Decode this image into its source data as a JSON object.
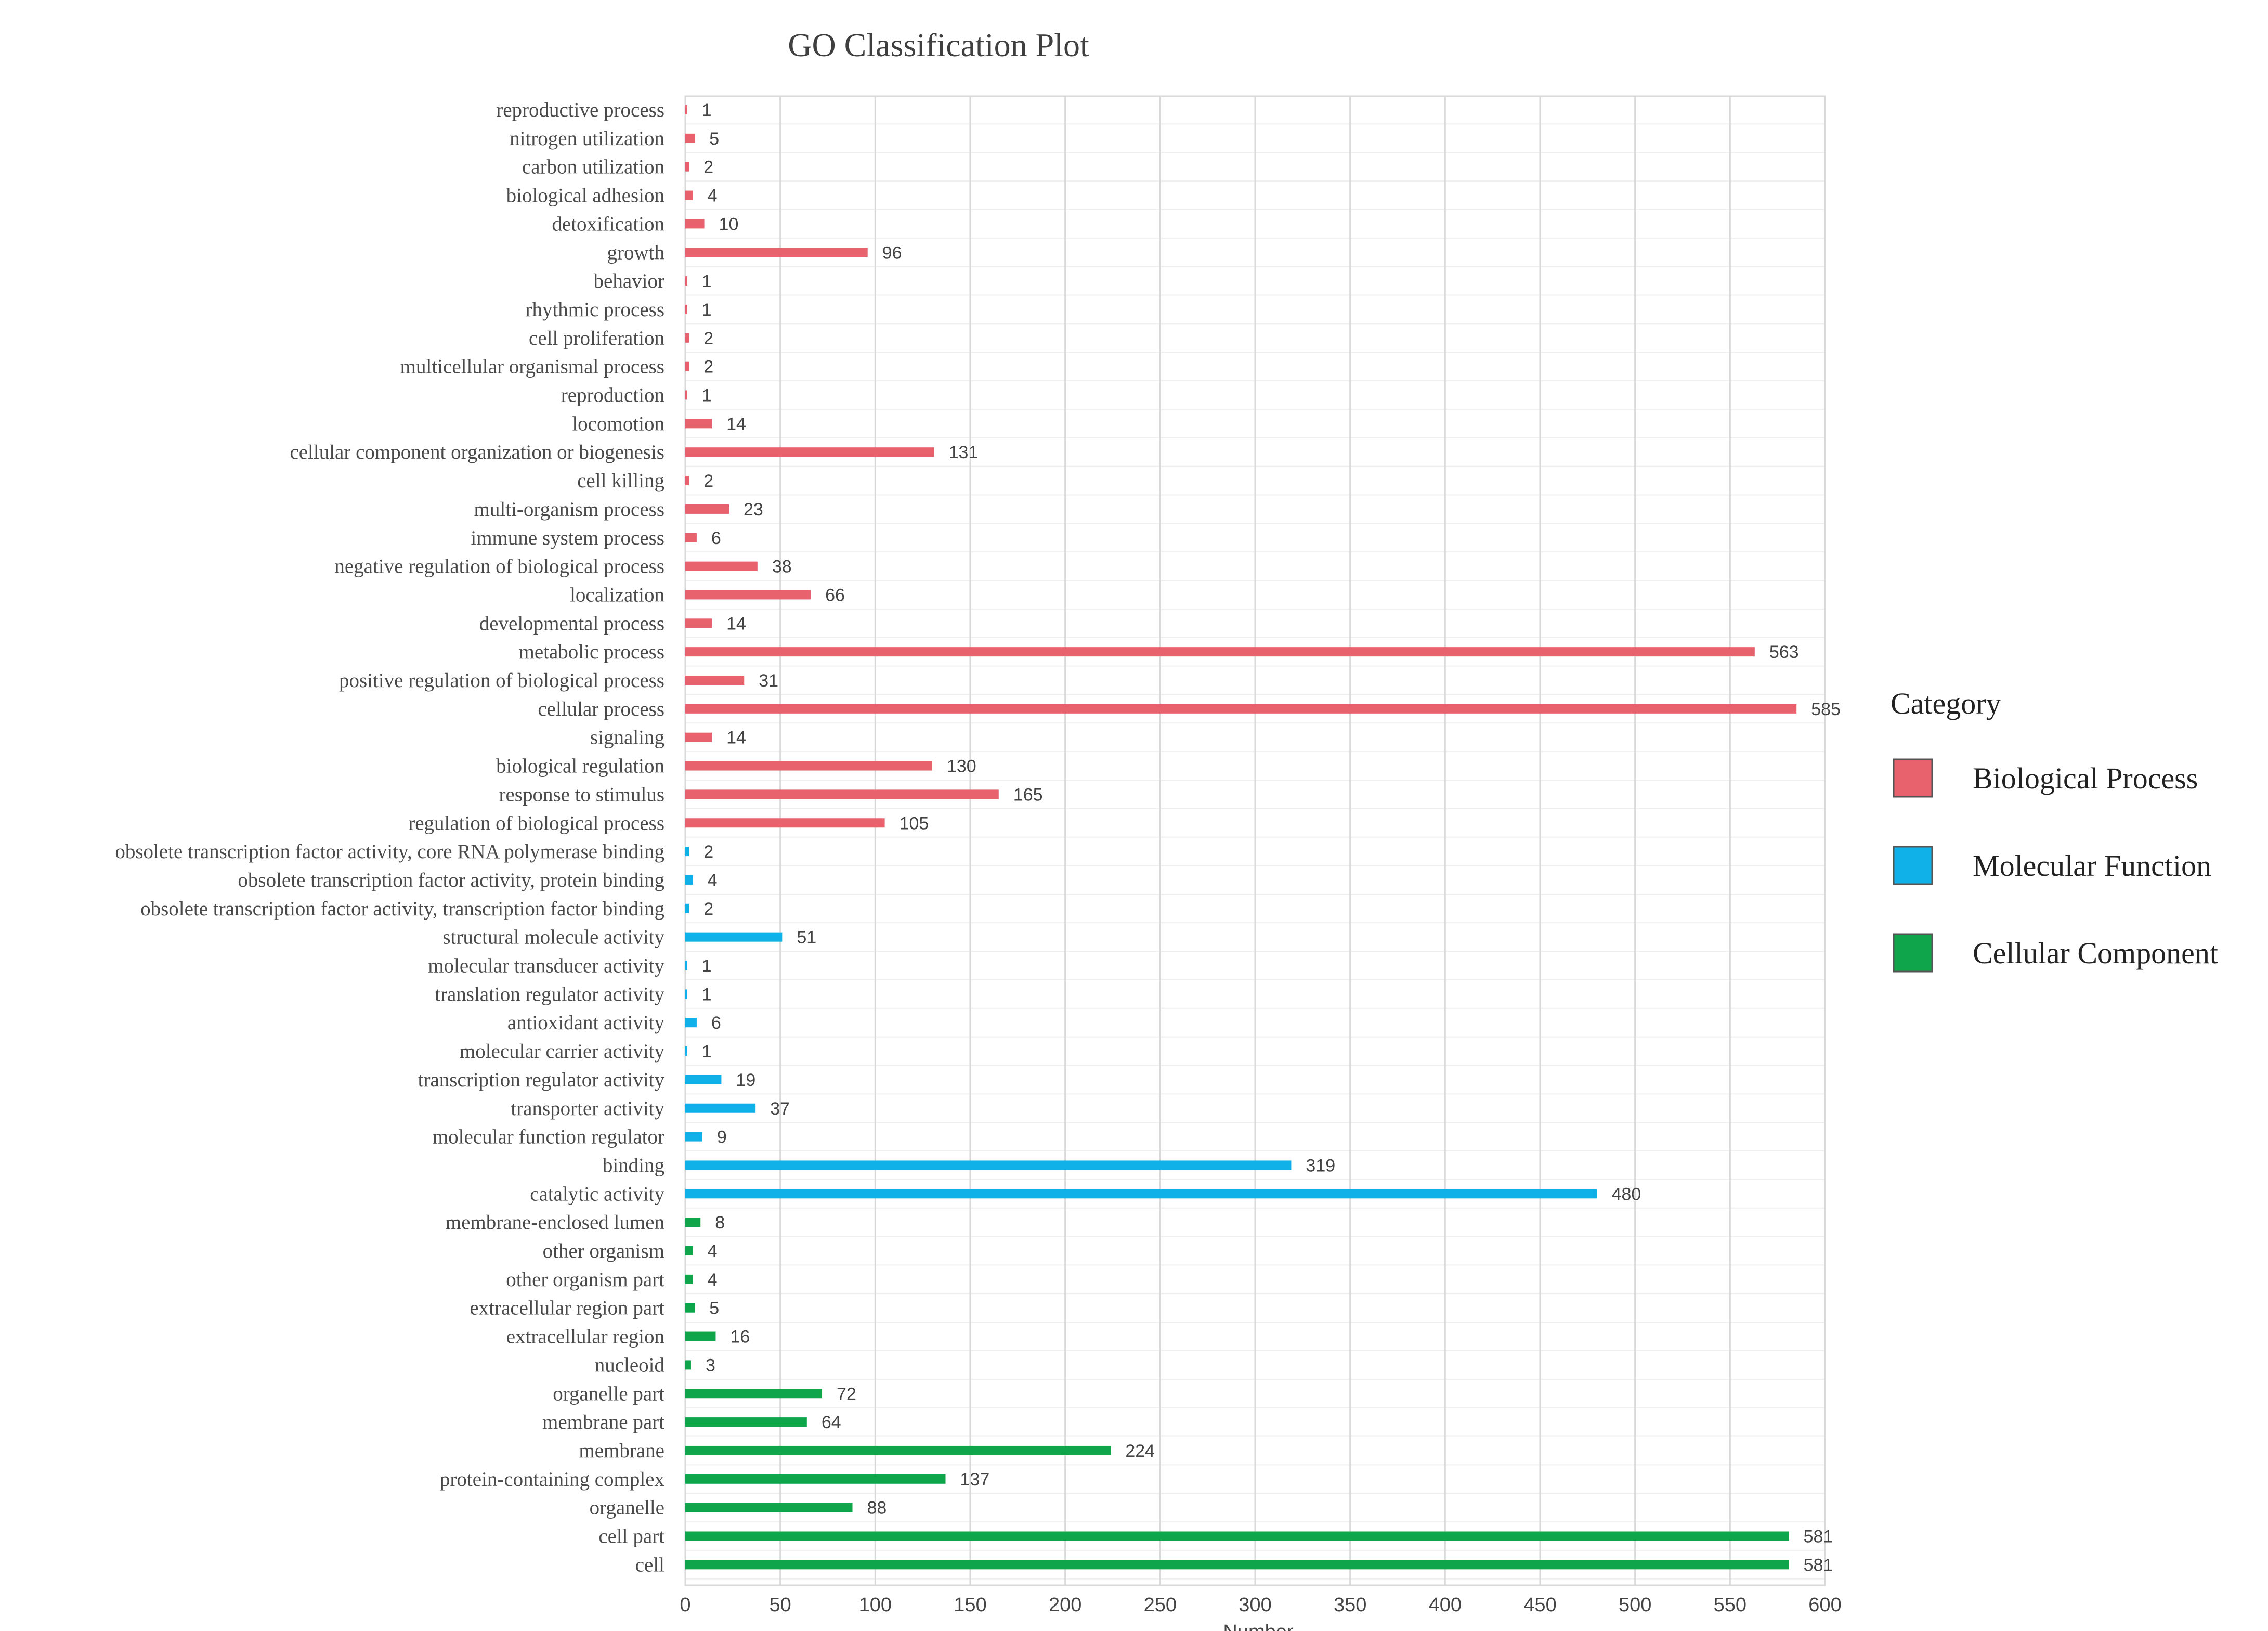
{
  "chart_data": {
    "type": "bar",
    "orientation": "horizontal",
    "title": "GO Classification Plot",
    "xlabel": "Number",
    "ylabel": "",
    "xlim": [
      0,
      600
    ],
    "x_ticks": [
      0,
      50,
      100,
      150,
      200,
      250,
      300,
      350,
      400,
      450,
      500,
      550,
      600
    ],
    "grid": "vertical",
    "legend_position": "right",
    "legend_title": "Category",
    "series": [
      {
        "name": "Biological Process",
        "color": "#e8626e"
      },
      {
        "name": "Molecular Function",
        "color": "#10b0e8"
      },
      {
        "name": "Cellular Component",
        "color": "#0fa64b"
      }
    ],
    "bars": [
      {
        "label": "reproductive process",
        "value": 1,
        "series": 0
      },
      {
        "label": "nitrogen utilization",
        "value": 5,
        "series": 0
      },
      {
        "label": "carbon utilization",
        "value": 2,
        "series": 0
      },
      {
        "label": "biological adhesion",
        "value": 4,
        "series": 0
      },
      {
        "label": "detoxification",
        "value": 10,
        "series": 0
      },
      {
        "label": "growth",
        "value": 96,
        "series": 0
      },
      {
        "label": "behavior",
        "value": 1,
        "series": 0
      },
      {
        "label": "rhythmic process",
        "value": 1,
        "series": 0
      },
      {
        "label": "cell proliferation",
        "value": 2,
        "series": 0
      },
      {
        "label": "multicellular organismal process",
        "value": 2,
        "series": 0
      },
      {
        "label": "reproduction",
        "value": 1,
        "series": 0
      },
      {
        "label": "locomotion",
        "value": 14,
        "series": 0
      },
      {
        "label": "cellular component organization or biogenesis",
        "value": 131,
        "series": 0
      },
      {
        "label": "cell killing",
        "value": 2,
        "series": 0
      },
      {
        "label": "multi-organism process",
        "value": 23,
        "series": 0
      },
      {
        "label": "immune system process",
        "value": 6,
        "series": 0
      },
      {
        "label": "negative regulation of biological process",
        "value": 38,
        "series": 0
      },
      {
        "label": "localization",
        "value": 66,
        "series": 0
      },
      {
        "label": "developmental process",
        "value": 14,
        "series": 0
      },
      {
        "label": "metabolic process",
        "value": 563,
        "series": 0
      },
      {
        "label": "positive regulation of biological process",
        "value": 31,
        "series": 0
      },
      {
        "label": "cellular process",
        "value": 585,
        "series": 0
      },
      {
        "label": "signaling",
        "value": 14,
        "series": 0
      },
      {
        "label": "biological regulation",
        "value": 130,
        "series": 0
      },
      {
        "label": "response to stimulus",
        "value": 165,
        "series": 0
      },
      {
        "label": "regulation of biological process",
        "value": 105,
        "series": 0
      },
      {
        "label": "obsolete transcription factor activity, core RNA polymerase binding",
        "value": 2,
        "series": 1
      },
      {
        "label": "obsolete transcription factor activity, protein binding",
        "value": 4,
        "series": 1
      },
      {
        "label": "obsolete transcription factor activity, transcription factor binding",
        "value": 2,
        "series": 1
      },
      {
        "label": "structural molecule activity",
        "value": 51,
        "series": 1
      },
      {
        "label": "molecular transducer activity",
        "value": 1,
        "series": 1
      },
      {
        "label": "translation regulator activity",
        "value": 1,
        "series": 1
      },
      {
        "label": "antioxidant activity",
        "value": 6,
        "series": 1
      },
      {
        "label": "molecular carrier activity",
        "value": 1,
        "series": 1
      },
      {
        "label": "transcription regulator activity",
        "value": 19,
        "series": 1
      },
      {
        "label": "transporter activity",
        "value": 37,
        "series": 1
      },
      {
        "label": "molecular function regulator",
        "value": 9,
        "series": 1
      },
      {
        "label": "binding",
        "value": 319,
        "series": 1
      },
      {
        "label": "catalytic activity",
        "value": 480,
        "series": 1
      },
      {
        "label": "membrane-enclosed lumen",
        "value": 8,
        "series": 2
      },
      {
        "label": "other organism",
        "value": 4,
        "series": 2
      },
      {
        "label": "other organism part",
        "value": 4,
        "series": 2
      },
      {
        "label": "extracellular region part",
        "value": 5,
        "series": 2
      },
      {
        "label": "extracellular region",
        "value": 16,
        "series": 2
      },
      {
        "label": "nucleoid",
        "value": 3,
        "series": 2
      },
      {
        "label": "organelle part",
        "value": 72,
        "series": 2
      },
      {
        "label": "membrane part",
        "value": 64,
        "series": 2
      },
      {
        "label": "membrane",
        "value": 224,
        "series": 2
      },
      {
        "label": "protein-containing complex",
        "value": 137,
        "series": 2
      },
      {
        "label": "organelle",
        "value": 88,
        "series": 2
      },
      {
        "label": "cell part",
        "value": 581,
        "series": 2
      },
      {
        "label": "cell",
        "value": 581,
        "series": 2
      }
    ]
  }
}
